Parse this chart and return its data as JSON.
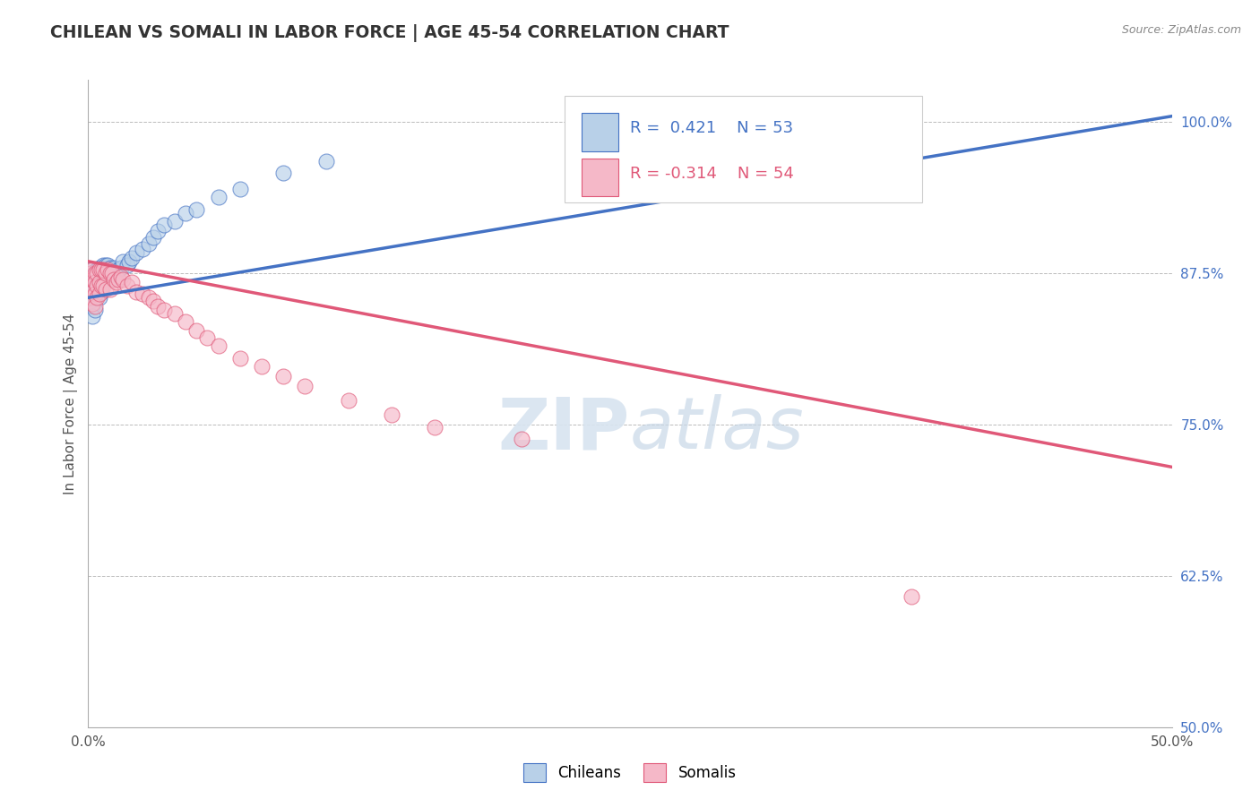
{
  "title": "CHILEAN VS SOMALI IN LABOR FORCE | AGE 45-54 CORRELATION CHART",
  "source_text": "Source: ZipAtlas.com",
  "ylabel": "In Labor Force | Age 45-54",
  "xlim": [
    0.0,
    0.5
  ],
  "ylim": [
    0.5,
    1.035
  ],
  "yticks": [
    0.5,
    0.625,
    0.75,
    0.875,
    1.0
  ],
  "ytick_labels": [
    "50.0%",
    "62.5%",
    "75.0%",
    "87.5%",
    "100.0%"
  ],
  "xticks": [
    0.0,
    0.1,
    0.2,
    0.3,
    0.4,
    0.5
  ],
  "xtick_labels": [
    "0.0%",
    "",
    "",
    "",
    "",
    "50.0%"
  ],
  "chilean_R": 0.421,
  "chilean_N": 53,
  "somali_R": -0.314,
  "somali_N": 54,
  "chilean_color": "#b8d0e8",
  "somali_color": "#f5b8c8",
  "chilean_line_color": "#4472C4",
  "somali_line_color": "#E05878",
  "background_color": "#ffffff",
  "grid_color": "#bbbbbb",
  "title_color": "#333333",
  "watermark_color": "#d8e4f0",
  "chilean_x": [
    0.001,
    0.001,
    0.001,
    0.001,
    0.002,
    0.002,
    0.002,
    0.002,
    0.002,
    0.003,
    0.003,
    0.003,
    0.003,
    0.003,
    0.004,
    0.004,
    0.004,
    0.005,
    0.005,
    0.005,
    0.005,
    0.006,
    0.006,
    0.006,
    0.007,
    0.007,
    0.008,
    0.008,
    0.009,
    0.01,
    0.01,
    0.011,
    0.012,
    0.013,
    0.014,
    0.015,
    0.016,
    0.018,
    0.019,
    0.02,
    0.022,
    0.025,
    0.028,
    0.03,
    0.032,
    0.035,
    0.04,
    0.045,
    0.05,
    0.06,
    0.07,
    0.09,
    0.11
  ],
  "chilean_y": [
    0.87,
    0.878,
    0.86,
    0.852,
    0.873,
    0.866,
    0.855,
    0.848,
    0.84,
    0.875,
    0.868,
    0.862,
    0.855,
    0.845,
    0.878,
    0.87,
    0.862,
    0.88,
    0.872,
    0.865,
    0.855,
    0.88,
    0.872,
    0.86,
    0.882,
    0.87,
    0.882,
    0.875,
    0.882,
    0.88,
    0.87,
    0.878,
    0.88,
    0.875,
    0.878,
    0.88,
    0.885,
    0.882,
    0.885,
    0.888,
    0.892,
    0.895,
    0.9,
    0.905,
    0.91,
    0.915,
    0.918,
    0.925,
    0.928,
    0.938,
    0.945,
    0.958,
    0.968
  ],
  "somali_x": [
    0.001,
    0.001,
    0.001,
    0.002,
    0.002,
    0.002,
    0.002,
    0.003,
    0.003,
    0.003,
    0.003,
    0.004,
    0.004,
    0.004,
    0.005,
    0.005,
    0.005,
    0.006,
    0.006,
    0.007,
    0.007,
    0.008,
    0.008,
    0.009,
    0.01,
    0.01,
    0.011,
    0.012,
    0.013,
    0.014,
    0.015,
    0.016,
    0.018,
    0.02,
    0.022,
    0.025,
    0.028,
    0.03,
    0.032,
    0.035,
    0.04,
    0.045,
    0.05,
    0.055,
    0.06,
    0.07,
    0.08,
    0.09,
    0.1,
    0.12,
    0.14,
    0.16,
    0.2,
    0.38
  ],
  "somali_y": [
    0.875,
    0.865,
    0.855,
    0.878,
    0.87,
    0.86,
    0.85,
    0.875,
    0.868,
    0.858,
    0.848,
    0.875,
    0.865,
    0.855,
    0.878,
    0.868,
    0.858,
    0.878,
    0.865,
    0.878,
    0.865,
    0.875,
    0.862,
    0.878,
    0.875,
    0.862,
    0.875,
    0.87,
    0.868,
    0.87,
    0.872,
    0.87,
    0.865,
    0.868,
    0.86,
    0.858,
    0.855,
    0.852,
    0.848,
    0.845,
    0.842,
    0.835,
    0.828,
    0.822,
    0.815,
    0.805,
    0.798,
    0.79,
    0.782,
    0.77,
    0.758,
    0.748,
    0.738,
    0.608
  ],
  "chilean_trend_x": [
    0.0,
    0.5
  ],
  "chilean_trend_y": [
    0.855,
    1.005
  ],
  "somali_trend_x": [
    0.0,
    0.5
  ],
  "somali_trend_y": [
    0.885,
    0.715
  ]
}
